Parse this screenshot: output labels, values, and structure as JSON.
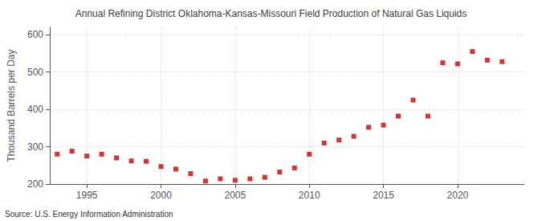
{
  "chart_data": {
    "type": "scatter",
    "title": "Annual Refining District Oklahoma-Kansas-Missouri Field Production of Natural Gas Liquids",
    "y_label": "Thousand Barrels per Day",
    "source": "Source: U.S. Energy Information Administration",
    "x": [
      1993,
      1994,
      1995,
      1996,
      1997,
      1998,
      1999,
      2000,
      2001,
      2002,
      2003,
      2004,
      2005,
      2006,
      2007,
      2008,
      2009,
      2010,
      2011,
      2012,
      2013,
      2014,
      2015,
      2016,
      2017,
      2018,
      2019,
      2020,
      2021,
      2022,
      2023
    ],
    "values": [
      280,
      288,
      275,
      280,
      270,
      262,
      261,
      247,
      240,
      228,
      208,
      214,
      210,
      214,
      218,
      232,
      243,
      280,
      310,
      318,
      328,
      352,
      358,
      382,
      425,
      382,
      525,
      522,
      555,
      532,
      528
    ],
    "color": "#cc0000",
    "marker": "square",
    "xlim": [
      1992.5,
      2024.5
    ],
    "xticks": [
      1995,
      2000,
      2005,
      2010,
      2015,
      2020
    ],
    "ylim": [
      200,
      620
    ],
    "yticks": [
      200,
      300,
      400,
      500,
      600
    ],
    "grid": true
  }
}
